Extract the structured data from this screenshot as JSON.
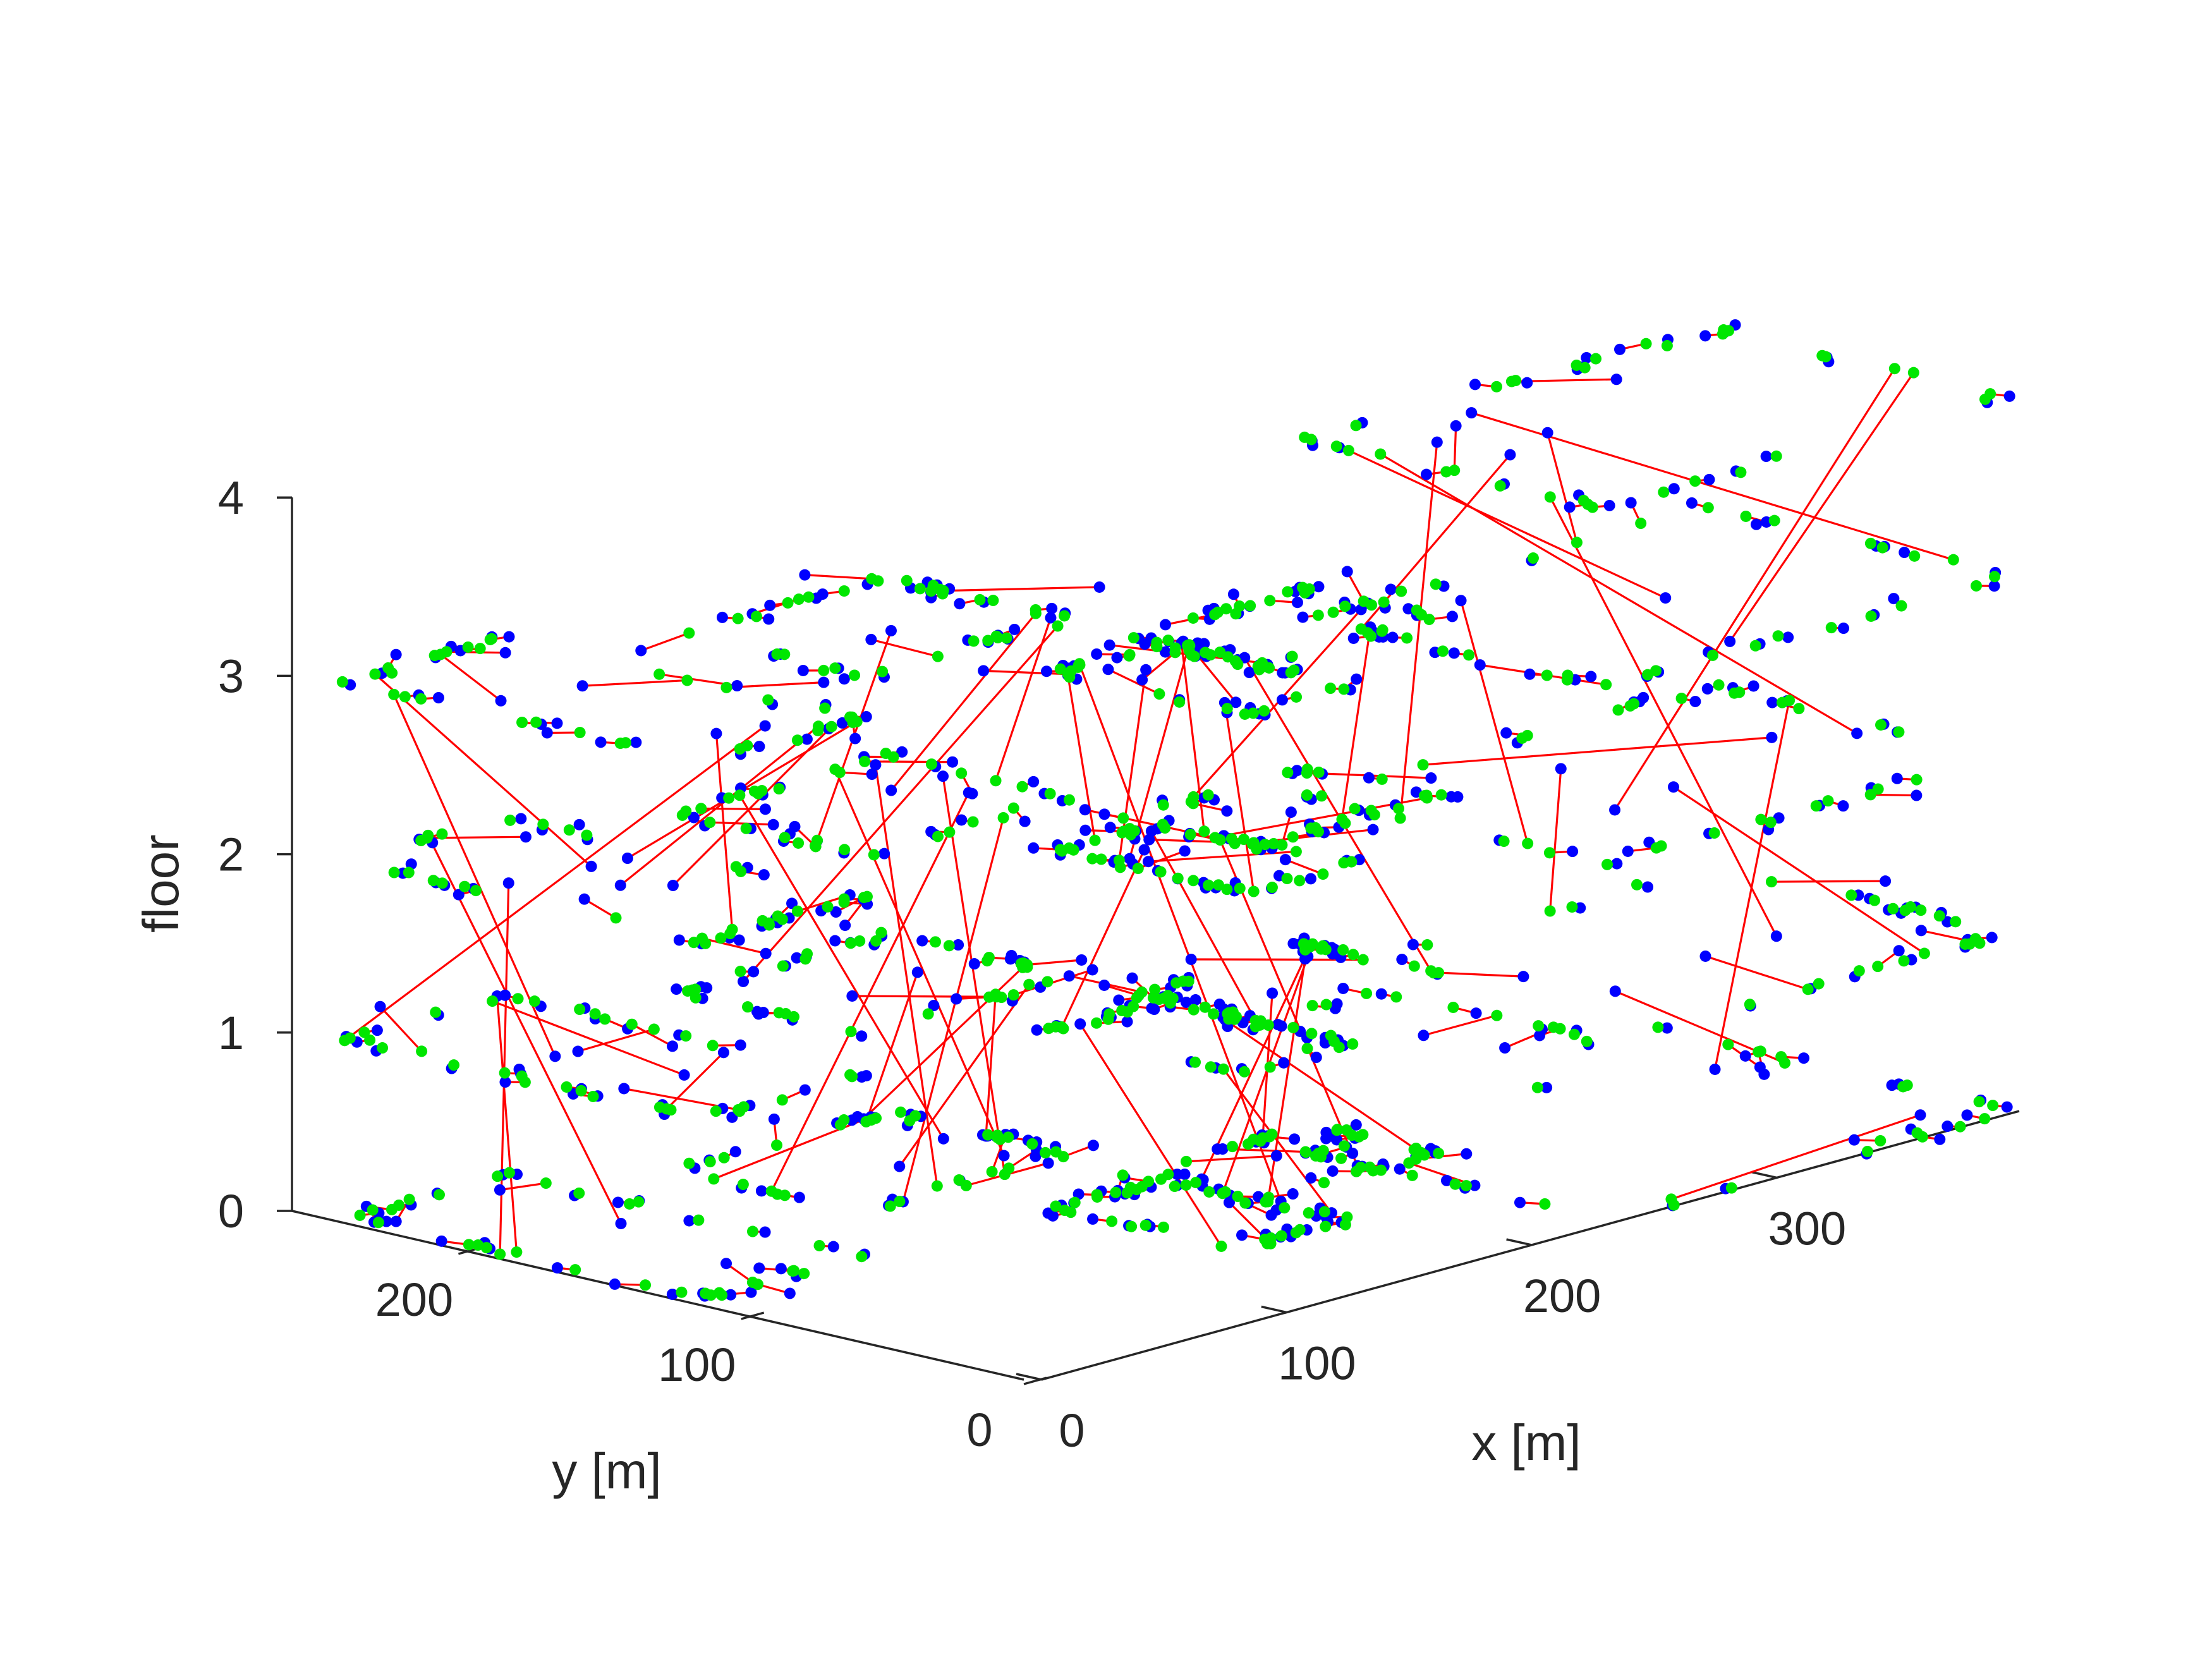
{
  "colors": {
    "axis": "#262626",
    "estimate": "#0000ff",
    "ground_truth": "#00e600",
    "error_line": "#ff0000",
    "background": "#ffffff"
  },
  "chart_data": {
    "type": "scatter",
    "projection": "3d",
    "xlabel": "x [m]",
    "ylabel": "y [m]",
    "zlabel": "floor",
    "x_ticks": [
      0,
      100,
      200,
      300
    ],
    "y_ticks": [
      0,
      100,
      200
    ],
    "z_ticks": [
      0,
      1,
      2,
      3,
      4
    ],
    "xlim": [
      0,
      400
    ],
    "ylim": [
      0,
      260
    ],
    "zlim": [
      0,
      4
    ],
    "grid": false,
    "legend": "none",
    "series": [
      {
        "color": "#0000ff",
        "marker": "."
      },
      {
        "color": "#00e600",
        "marker": "."
      },
      {
        "color": "#ff0000",
        "line": "-"
      }
    ],
    "buildings": [
      {
        "x": [
          0,
          70
        ],
        "y": [
          120,
          250
        ],
        "floors": [
          0,
          1,
          2,
          3
        ]
      },
      {
        "x": [
          100,
          190
        ],
        "y": [
          150,
          220
        ],
        "floors": [
          0,
          1,
          2,
          3
        ]
      },
      {
        "x": [
          140,
          190
        ],
        "y": [
          50,
          120
        ],
        "floors": [
          0,
          1,
          2,
          3
        ]
      },
      {
        "x": [
          180,
          260
        ],
        "y": [
          80,
          130
        ],
        "floors": [
          0,
          1,
          2,
          3
        ]
      },
      {
        "x": [
          230,
          400
        ],
        "y": [
          0,
          110
        ],
        "floors": [
          0,
          1,
          2,
          3,
          4
        ]
      }
    ]
  }
}
